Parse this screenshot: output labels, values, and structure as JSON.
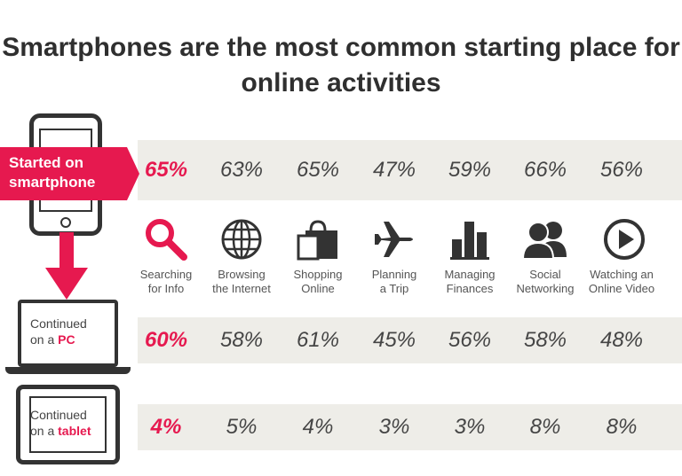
{
  "title": "Smartphones are the most common starting place for online activities",
  "colors": {
    "accent": "#e6194f",
    "band": "#eeede8",
    "text": "#454545"
  },
  "chart_data": {
    "type": "table",
    "title": "Smartphones are the most common starting place for online activities",
    "categories": [
      {
        "line1": "Searching",
        "line2": "for Info",
        "icon": "magnifier-icon"
      },
      {
        "line1": "Browsing",
        "line2": "the Internet",
        "icon": "globe-icon"
      },
      {
        "line1": "Shopping",
        "line2": "Online",
        "icon": "shopping-bag-icon"
      },
      {
        "line1": "Planning",
        "line2": "a Trip",
        "icon": "airplane-icon"
      },
      {
        "line1": "Managing",
        "line2": "Finances",
        "icon": "bar-chart-icon"
      },
      {
        "line1": "Social",
        "line2": "Networking",
        "icon": "people-icon"
      },
      {
        "line1": "Watching an",
        "line2": "Online Video",
        "icon": "play-icon"
      }
    ],
    "rows": [
      {
        "label_line1": "Started on",
        "label_line2": "smartphone",
        "values": [
          "65%",
          "63%",
          "65%",
          "47%",
          "59%",
          "66%",
          "56%"
        ]
      },
      {
        "label_line1": "Continued",
        "label_line2_prefix": "on a ",
        "label_line2_accent": "PC",
        "values": [
          "60%",
          "58%",
          "61%",
          "45%",
          "56%",
          "58%",
          "48%"
        ]
      },
      {
        "label_line1": "Continued",
        "label_line2_prefix": "on a ",
        "label_line2_accent": "tablet",
        "values": [
          "4%",
          "5%",
          "4%",
          "3%",
          "3%",
          "8%",
          "8%"
        ]
      }
    ],
    "highlight_column": 0
  }
}
